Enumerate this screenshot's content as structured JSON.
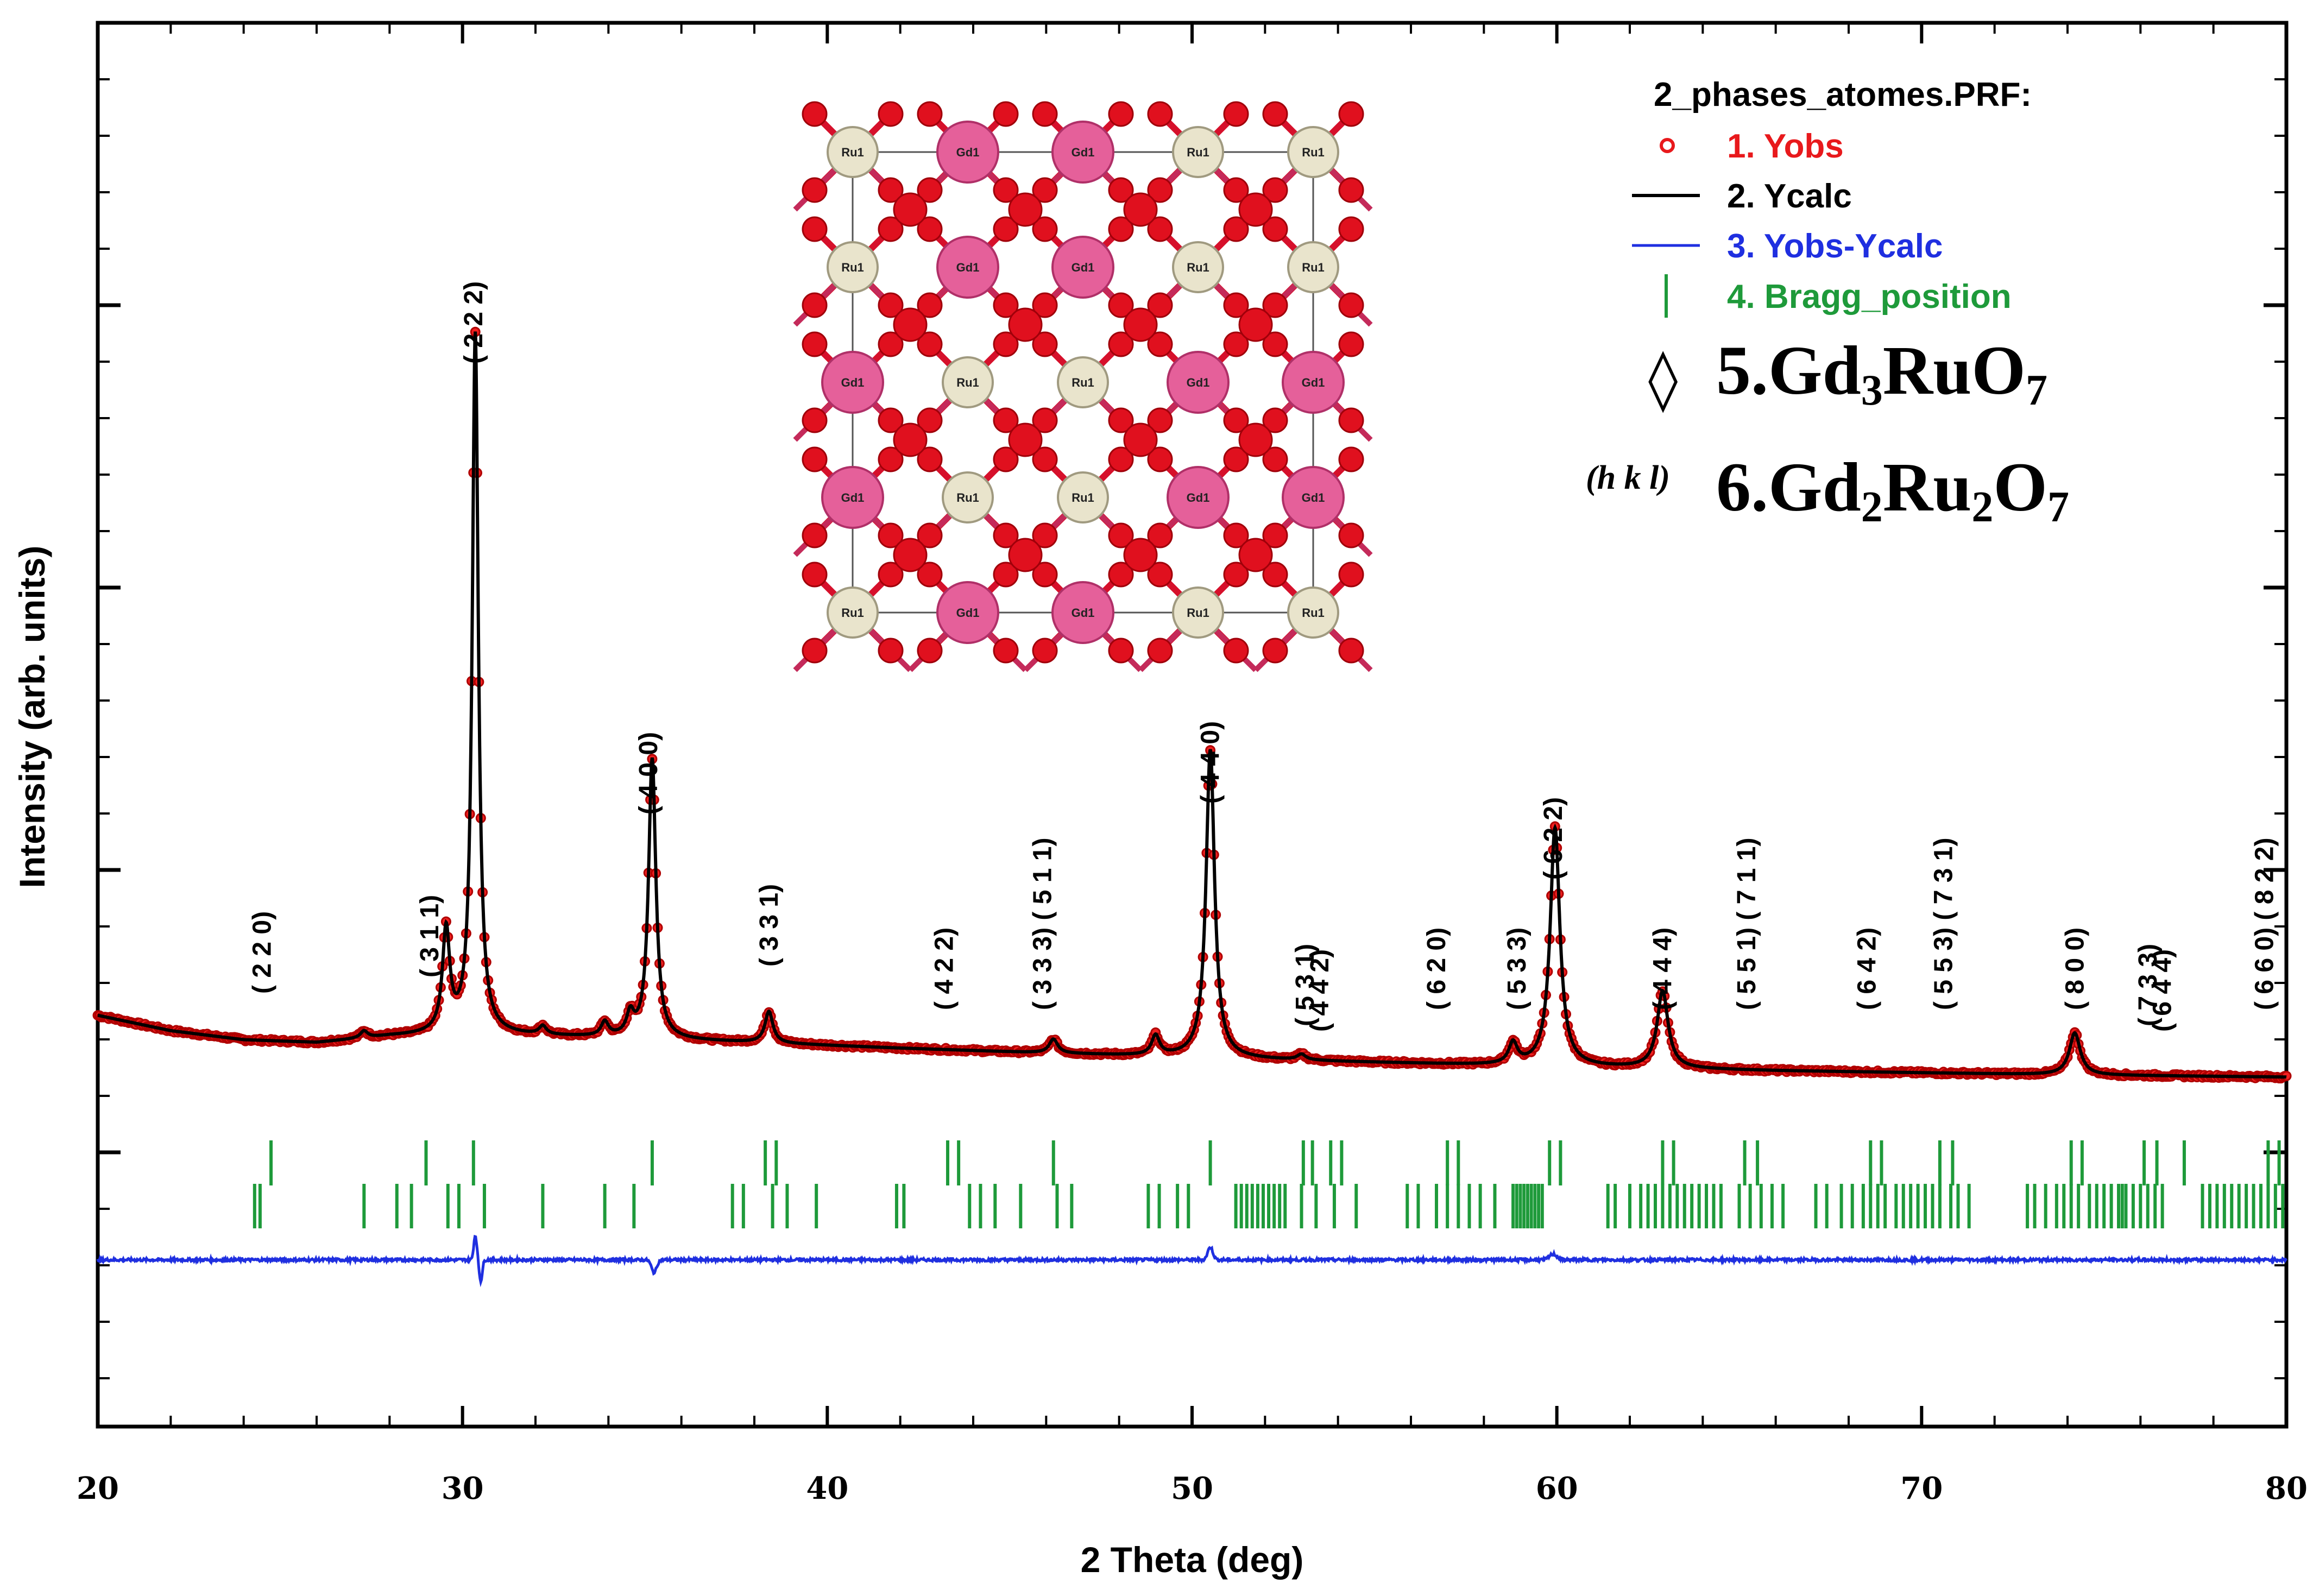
{
  "chart_data": {
    "type": "line",
    "xlabel": "2 Theta (deg)",
    "ylabel": "Intensity (arb. units)",
    "xlim": [
      20,
      80
    ],
    "xticks": [
      "20",
      "30",
      "40",
      "50",
      "60",
      "70",
      "80"
    ],
    "legend": {
      "title": "2_phases_atomes.PRF:",
      "entries": [
        {
          "label": "1. Yobs",
          "color": "#e8191c",
          "marker": "circle"
        },
        {
          "label": "2. Ycalc",
          "color": "#000000",
          "marker": "line"
        },
        {
          "label": "3. Yobs-Ycalc",
          "color": "#1f2fe0",
          "marker": "line"
        },
        {
          "label": "4. Bragg_position",
          "color": "#1e9a3a",
          "marker": "tick"
        }
      ],
      "phase5": {
        "symbol": "◊",
        "base": "5.Gd",
        "s1": "3",
        "mid": "RuO",
        "s2": "7"
      },
      "phase6": {
        "symbol": "(h k l)",
        "base": "6.Gd",
        "s1": "2",
        "mid": "Ru",
        "s2": "2",
        "tail": "O",
        "s3": "7"
      }
    },
    "background": [
      [
        20,
        0.128
      ],
      [
        22,
        0.106
      ],
      [
        24,
        0.093
      ],
      [
        26,
        0.089
      ],
      [
        28,
        0.098
      ],
      [
        30,
        0.101
      ],
      [
        34,
        0.096
      ],
      [
        38,
        0.089
      ],
      [
        42,
        0.081
      ],
      [
        46,
        0.074
      ],
      [
        50,
        0.068
      ],
      [
        54,
        0.062
      ],
      [
        58,
        0.057
      ],
      [
        62,
        0.053
      ],
      [
        66,
        0.049
      ],
      [
        70,
        0.046
      ],
      [
        74,
        0.043
      ],
      [
        78,
        0.041
      ],
      [
        80,
        0.04
      ]
    ],
    "peaks": [
      {
        "x": 27.3,
        "h": 0.01,
        "w": 0.12
      },
      {
        "x": 29.55,
        "h": 0.145,
        "w": 0.12
      },
      {
        "x": 30.35,
        "h": 1.0,
        "w": 0.1
      },
      {
        "x": 32.2,
        "h": 0.012,
        "w": 0.12
      },
      {
        "x": 33.9,
        "h": 0.02,
        "w": 0.12
      },
      {
        "x": 34.6,
        "h": 0.03,
        "w": 0.12
      },
      {
        "x": 35.2,
        "h": 0.4,
        "w": 0.12
      },
      {
        "x": 38.4,
        "h": 0.045,
        "w": 0.13
      },
      {
        "x": 46.2,
        "h": 0.02,
        "w": 0.14
      },
      {
        "x": 49.0,
        "h": 0.028,
        "w": 0.13
      },
      {
        "x": 50.5,
        "h": 0.44,
        "w": 0.14
      },
      {
        "x": 53.0,
        "h": 0.008,
        "w": 0.14
      },
      {
        "x": 58.8,
        "h": 0.03,
        "w": 0.14
      },
      {
        "x": 59.95,
        "h": 0.34,
        "w": 0.16
      },
      {
        "x": 62.9,
        "h": 0.11,
        "w": 0.18
      },
      {
        "x": 74.2,
        "h": 0.06,
        "w": 0.18
      }
    ],
    "annotations": [
      {
        "x": 24.5,
        "text": "( 2 2 0)"
      },
      {
        "x": 29.1,
        "text": "( 3 1 1)"
      },
      {
        "x": 30.3,
        "text": "( 2 2 2)"
      },
      {
        "x": 35.1,
        "text": "( 4 0 0)"
      },
      {
        "x": 38.4,
        "text": "( 3 3 1)"
      },
      {
        "x": 43.2,
        "text": "( 4 2 2)"
      },
      {
        "x": 45.9,
        "text": "( 3 3 3) ( 5 1 1)"
      },
      {
        "x": 50.5,
        "text": "( 4 4 0)"
      },
      {
        "x": 53.1,
        "text": "( 5 3 1)"
      },
      {
        "x": 53.5,
        "text": "( 4 4 2)"
      },
      {
        "x": 56.7,
        "text": "( 6 2 0)"
      },
      {
        "x": 58.9,
        "text": "( 5 3 3)"
      },
      {
        "x": 59.9,
        "text": "( 6 2 2)"
      },
      {
        "x": 62.9,
        "text": "( 4 4 4)"
      },
      {
        "x": 65.2,
        "text": "( 5 5 1) ( 7 1 1)"
      },
      {
        "x": 68.5,
        "text": "( 6 4 2)"
      },
      {
        "x": 70.6,
        "text": "( 5 5 3) ( 7 3 1)"
      },
      {
        "x": 74.2,
        "text": "( 8 0 0)"
      },
      {
        "x": 76.2,
        "text": "( 7 3 3)"
      },
      {
        "x": 76.6,
        "text": "( 6 4 4)"
      },
      {
        "x": 79.4,
        "text": "( 6 6 0) ( 8 2 2)"
      }
    ],
    "bragg_row1": [
      24.75,
      29.0,
      30.3,
      35.2,
      38.3,
      38.6,
      43.3,
      43.6,
      46.2,
      50.5,
      53.05,
      53.3,
      53.8,
      54.1,
      57.0,
      57.3,
      59.8,
      60.1,
      62.9,
      63.2,
      65.15,
      65.5,
      68.6,
      68.9,
      70.5,
      70.85,
      74.1,
      74.4,
      76.1,
      76.45,
      77.2,
      79.5,
      79.8
    ],
    "bragg_row2": [
      24.3,
      24.45,
      27.3,
      28.2,
      28.6,
      29.6,
      29.9,
      30.6,
      32.2,
      33.9,
      34.7,
      37.4,
      37.7,
      38.5,
      38.9,
      39.7,
      41.9,
      42.1,
      43.9,
      44.2,
      44.6,
      45.3,
      46.3,
      46.7,
      48.8,
      49.1,
      49.6,
      49.9,
      51.2,
      51.35,
      51.5,
      51.65,
      51.8,
      51.95,
      52.1,
      52.25,
      52.4,
      52.55,
      53.0,
      53.4,
      53.9,
      54.5,
      55.9,
      56.2,
      56.7,
      57.0,
      57.3,
      57.6,
      57.9,
      58.3,
      58.8,
      58.9,
      59.0,
      59.1,
      59.2,
      59.3,
      59.4,
      59.5,
      59.6,
      61.4,
      61.6,
      62.0,
      62.3,
      62.5,
      62.7,
      62.9,
      63.1,
      63.3,
      63.5,
      63.7,
      63.9,
      64.1,
      64.3,
      64.5,
      65.0,
      65.3,
      65.6,
      65.9,
      66.2,
      67.1,
      67.4,
      67.8,
      68.1,
      68.4,
      68.6,
      68.8,
      69.0,
      69.3,
      69.5,
      69.7,
      69.9,
      70.1,
      70.3,
      70.5,
      70.8,
      71.0,
      71.3,
      72.9,
      73.1,
      73.4,
      73.7,
      73.9,
      74.1,
      74.3,
      74.6,
      74.8,
      75.0,
      75.2,
      75.4,
      75.5,
      75.6,
      75.8,
      76.0,
      76.2,
      76.4,
      76.6,
      77.7,
      77.9,
      78.1,
      78.3,
      78.5,
      78.7,
      78.9,
      79.1,
      79.3,
      79.5,
      79.7,
      79.9
    ],
    "difference_features": [
      {
        "x": 30.35,
        "a": 0.035,
        "w": 0.06
      },
      {
        "x": 30.5,
        "a": -0.03,
        "w": 0.06
      },
      {
        "x": 35.25,
        "a": -0.018,
        "w": 0.1
      },
      {
        "x": 50.5,
        "a": 0.018,
        "w": 0.1
      },
      {
        "x": 59.9,
        "a": 0.008,
        "w": 0.15
      }
    ],
    "inset": {
      "type": "crystal-structure",
      "labels": [
        [
          "Ru1",
          "Gd1",
          "Gd1",
          "Ru1",
          "Ru1"
        ],
        [
          "Ru1",
          "Gd1",
          "Gd1",
          "Ru1",
          "Ru1"
        ],
        [
          "Gd1",
          "Ru1",
          "Ru1",
          "Gd1",
          "Gd1"
        ],
        [
          "Gd1",
          "Ru1",
          "Ru1",
          "Gd1",
          "Gd1"
        ],
        [
          "Ru1",
          "Gd1",
          "Gd1",
          "Ru1",
          "Ru1"
        ]
      ]
    }
  }
}
